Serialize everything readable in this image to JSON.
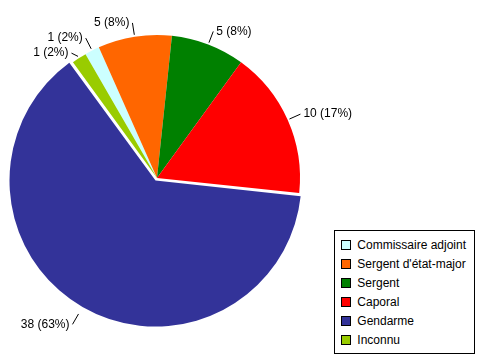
{
  "chart_data": {
    "type": "pie",
    "categories": [
      "Commissaire adjoint",
      "Sergent d'état-major",
      "Sergent",
      "Caporal",
      "Gendarme",
      "Inconnu"
    ],
    "values": [
      1,
      5,
      5,
      10,
      38,
      1
    ],
    "value_labels": [
      "1 (2%)",
      "5 (8%)",
      "5 (8%)",
      "10 (17%)",
      "38 (63%)",
      "1 (2%)"
    ],
    "colors": [
      "#ccffff",
      "#ff6600",
      "#008000",
      "#ff0000",
      "#333399",
      "#99cc00"
    ],
    "legend": "lower right",
    "data_labels": true
  }
}
